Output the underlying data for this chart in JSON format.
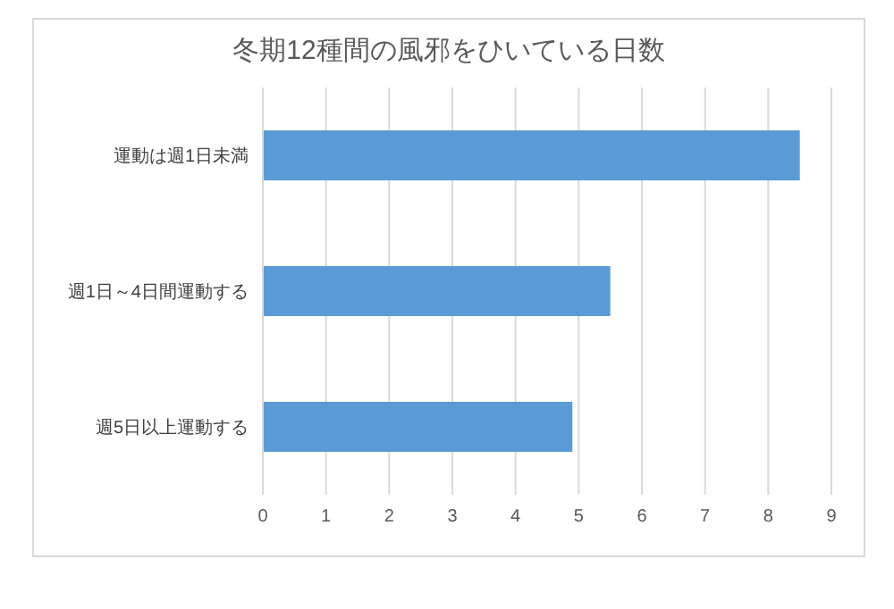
{
  "chart_data": {
    "type": "bar",
    "orientation": "horizontal",
    "title": "冬期12種間の風邪をひいている日数",
    "categories": [
      "運動は週1日未満",
      "週1日～4日間運動する",
      "週5日以上運動する"
    ],
    "values": [
      8.5,
      5.5,
      4.9
    ],
    "color": "#5b9bd5",
    "xlim": [
      0,
      9
    ],
    "xticks": [
      0,
      1,
      2,
      3,
      4,
      5,
      6,
      7,
      8,
      9
    ],
    "grid": "x"
  }
}
